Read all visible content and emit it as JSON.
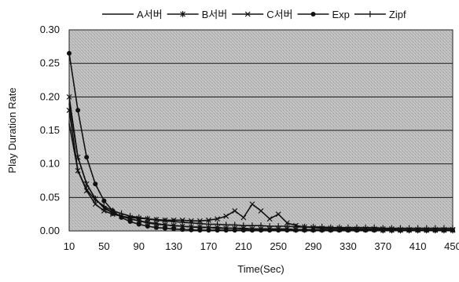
{
  "chart_data": {
    "type": "line",
    "title": "",
    "xlabel": "Time(Sec)",
    "ylabel": "Play Duration Rate",
    "xlim": [
      10,
      450
    ],
    "ylim": [
      0,
      0.3
    ],
    "x_ticks": [
      10,
      50,
      90,
      130,
      170,
      210,
      250,
      290,
      330,
      370,
      410,
      450
    ],
    "y_ticks": [
      "0.00",
      "0.05",
      "0.10",
      "0.15",
      "0.20",
      "0.25",
      "0.30"
    ],
    "grid": "horizontal",
    "legend_position": "top",
    "x": [
      10,
      20,
      30,
      40,
      50,
      60,
      70,
      80,
      90,
      100,
      110,
      120,
      130,
      140,
      150,
      160,
      170,
      180,
      190,
      200,
      210,
      220,
      230,
      240,
      250,
      260,
      270,
      280,
      290,
      300,
      310,
      320,
      330,
      340,
      350,
      360,
      370,
      380,
      390,
      400,
      410,
      420,
      430,
      440,
      450
    ],
    "series": [
      {
        "name": "A서버",
        "marker": "none",
        "values": [
          0.19,
          0.11,
          0.07,
          0.048,
          0.035,
          0.027,
          0.022,
          0.018,
          0.015,
          0.012,
          0.01,
          0.009,
          0.008,
          0.007,
          0.006,
          0.005,
          0.005,
          0.004,
          0.004,
          0.004,
          0.003,
          0.003,
          0.003,
          0.003,
          0.002,
          0.002,
          0.002,
          0.002,
          0.002,
          0.002,
          0.002,
          0.002,
          0.001,
          0.001,
          0.001,
          0.001,
          0.001,
          0.001,
          0.001,
          0.001,
          0.001,
          0.001,
          0.001,
          0.001,
          0.001
        ]
      },
      {
        "name": "B서버",
        "marker": "star",
        "values": [
          0.2,
          0.11,
          0.07,
          0.048,
          0.034,
          0.027,
          0.022,
          0.018,
          0.015,
          0.013,
          0.011,
          0.009,
          0.008,
          0.007,
          0.006,
          0.006,
          0.005,
          0.005,
          0.004,
          0.004,
          0.004,
          0.003,
          0.003,
          0.003,
          0.003,
          0.003,
          0.002,
          0.002,
          0.002,
          0.002,
          0.002,
          0.002,
          0.002,
          0.002,
          0.002,
          0.002,
          0.001,
          0.001,
          0.001,
          0.001,
          0.001,
          0.001,
          0.001,
          0.001,
          0.001
        ]
      },
      {
        "name": "C서버",
        "marker": "x",
        "values": [
          0.18,
          0.09,
          0.06,
          0.04,
          0.03,
          0.025,
          0.022,
          0.02,
          0.019,
          0.018,
          0.017,
          0.016,
          0.016,
          0.016,
          0.015,
          0.015,
          0.016,
          0.018,
          0.022,
          0.03,
          0.02,
          0.04,
          0.03,
          0.018,
          0.025,
          0.012,
          0.008,
          0.006,
          0.005,
          0.004,
          0.004,
          0.004,
          0.003,
          0.003,
          0.003,
          0.003,
          0.003,
          0.003,
          0.002,
          0.002,
          0.002,
          0.002,
          0.002,
          0.002,
          0.002
        ]
      },
      {
        "name": "Exp",
        "marker": "dot",
        "values": [
          0.265,
          0.18,
          0.11,
          0.07,
          0.045,
          0.03,
          0.02,
          0.014,
          0.01,
          0.007,
          0.005,
          0.004,
          0.003,
          0.002,
          0.0015,
          0.001,
          0.001,
          0.001,
          0.001,
          0.001,
          0.001,
          0.001,
          0.001,
          0.001,
          0.001,
          0.001,
          0.001,
          0.001,
          0.001,
          0.001,
          0.001,
          0.001,
          0.001,
          0.001,
          0.001,
          0.001,
          0.001,
          0.001,
          0.001,
          0.001,
          0.001,
          0.001,
          0.001,
          0.001,
          0.001
        ]
      },
      {
        "name": "Zipf",
        "marker": "plus",
        "values": [
          0.16,
          0.09,
          0.062,
          0.046,
          0.037,
          0.03,
          0.026,
          0.022,
          0.02,
          0.018,
          0.016,
          0.015,
          0.014,
          0.013,
          0.012,
          0.011,
          0.01,
          0.01,
          0.009,
          0.009,
          0.008,
          0.008,
          0.008,
          0.007,
          0.007,
          0.007,
          0.006,
          0.006,
          0.006,
          0.006,
          0.005,
          0.005,
          0.005,
          0.005,
          0.005,
          0.005,
          0.004,
          0.004,
          0.004,
          0.004,
          0.004,
          0.004,
          0.004,
          0.004,
          0.004
        ]
      }
    ]
  }
}
